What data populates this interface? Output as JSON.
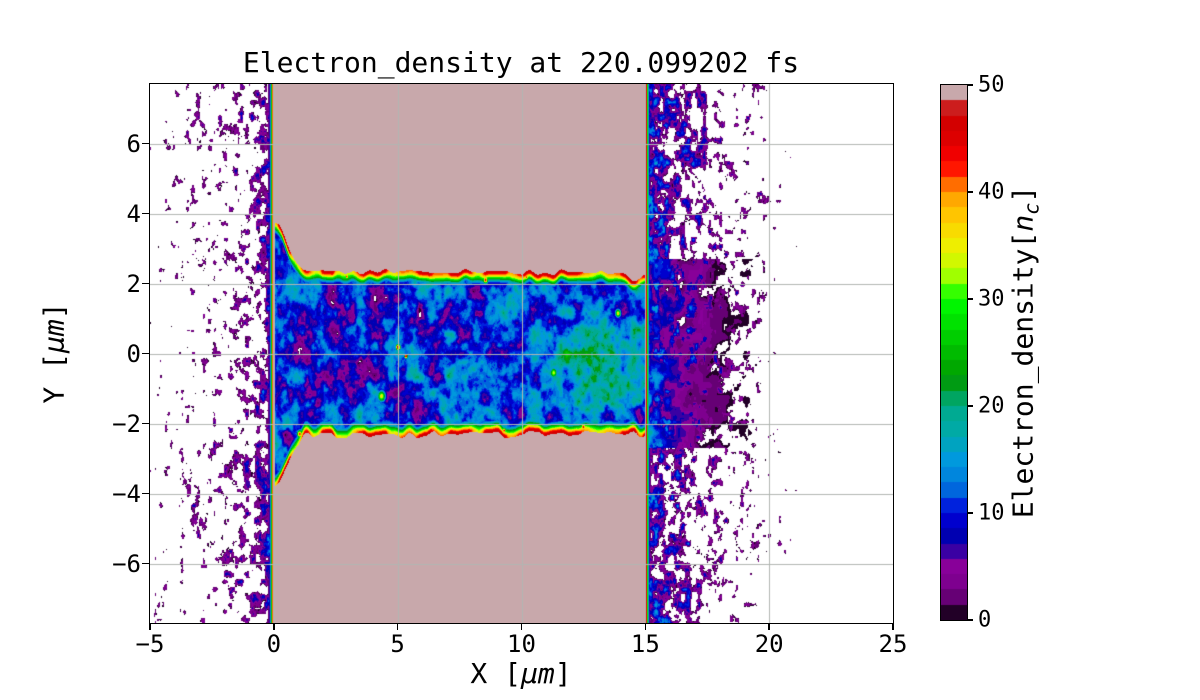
{
  "title": "Electron_density at 220.099202 fs",
  "labels": {
    "x": {
      "pre": "X [",
      "mu": "μm",
      "post": "]"
    },
    "y": {
      "pre": "Y [",
      "mu": "μm",
      "post": "]"
    },
    "cbar": {
      "pre": "Electron_density[",
      "sym": "n",
      "sub": "c",
      "post": "]"
    }
  },
  "axes": {
    "xlim": [
      -5,
      25
    ],
    "ylim": [
      -7.7,
      7.7
    ],
    "xticks": [
      {
        "v": -5,
        "label": "−5"
      },
      {
        "v": 0,
        "label": "0"
      },
      {
        "v": 5,
        "label": "5"
      },
      {
        "v": 10,
        "label": "10"
      },
      {
        "v": 15,
        "label": "15"
      },
      {
        "v": 20,
        "label": "20"
      },
      {
        "v": 25,
        "label": "25"
      }
    ],
    "yticks": [
      {
        "v": 6,
        "label": "6"
      },
      {
        "v": 4,
        "label": "4"
      },
      {
        "v": 2,
        "label": "2"
      },
      {
        "v": 0,
        "label": "0"
      },
      {
        "v": -2,
        "label": "−2"
      },
      {
        "v": -4,
        "label": "−4"
      },
      {
        "v": -6,
        "label": "−6"
      }
    ],
    "grid": {
      "color": "#b2b6b2",
      "xvalues": [
        0,
        5,
        10,
        15,
        20
      ],
      "yvalues": [
        -6,
        -4,
        -2,
        0,
        2,
        4,
        6
      ]
    }
  },
  "colorbar": {
    "vmin": 0,
    "vmax": 50,
    "ticks": [
      {
        "v": 0,
        "label": "0"
      },
      {
        "v": 10,
        "label": "10"
      },
      {
        "v": 20,
        "label": "20"
      },
      {
        "v": 30,
        "label": "30"
      },
      {
        "v": 40,
        "label": "40"
      },
      {
        "v": 50,
        "label": "50"
      }
    ]
  },
  "chart_data": {
    "type": "heatmap",
    "subtype": "filled-contour electron density map (PIC simulation output)",
    "title": "Electron_density at 220.099202 fs",
    "xlabel": "X [μm]",
    "ylabel": "Y [μm]",
    "colorbar_label": "Electron_density[n_c]",
    "xlim": [
      -5,
      25
    ],
    "ylim": [
      -7.7,
      7.7
    ],
    "value_range": [
      0,
      50
    ],
    "n_levels": 35,
    "below_min_blank_threshold": 1.0,
    "saturated_color": "#c8a8ab",
    "colormap_name": "nipy_spectral-like",
    "colormap_anchors": [
      [
        0.0,
        0.0,
        0.0,
        0.0
      ],
      [
        0.05,
        0.4667,
        0.0,
        0.5333
      ],
      [
        0.1,
        0.5333,
        0.0,
        0.6
      ],
      [
        0.15,
        0.0,
        0.0,
        0.6667
      ],
      [
        0.2,
        0.0,
        0.0,
        0.8667
      ],
      [
        0.25,
        0.0,
        0.4667,
        0.8667
      ],
      [
        0.3,
        0.0,
        0.6,
        0.8667
      ],
      [
        0.35,
        0.0,
        0.6667,
        0.6667
      ],
      [
        0.4,
        0.0,
        0.6667,
        0.5333
      ],
      [
        0.45,
        0.0,
        0.6,
        0.0
      ],
      [
        0.5,
        0.0,
        0.7333,
        0.0
      ],
      [
        0.55,
        0.0,
        0.8667,
        0.0
      ],
      [
        0.6,
        0.0,
        1.0,
        0.0
      ],
      [
        0.65,
        0.7333,
        1.0,
        0.0
      ],
      [
        0.7,
        0.9333,
        0.9333,
        0.0
      ],
      [
        0.75,
        1.0,
        0.8,
        0.0
      ],
      [
        0.8,
        1.0,
        0.6,
        0.0
      ],
      [
        0.85,
        1.0,
        0.0,
        0.0
      ],
      [
        0.9,
        0.8667,
        0.0,
        0.0
      ],
      [
        0.95,
        0.8,
        0.0,
        0.0
      ],
      [
        1.0,
        0.8,
        0.8,
        0.8
      ]
    ],
    "features": {
      "description": "Saturated (>=50 nc) target slabs spanning x=0..15 um above y~+2.3 and below y~-2.3; a turbulent under-dense channel |y|<2.3 bored through the target; red/orange rim contours along the slab walls; sparse purple electron speckle cloud for x<0; dense expanding purple cloud for x=15..23.",
      "gen": {
        "seed": 7,
        "slab_x": [
          0,
          15
        ],
        "channel_half_width": 2.32,
        "edge_flare_amp": 1.45,
        "edge_flare_sigma": 0.7,
        "edge_wiggle_amp": 0.11,
        "edge_wiggle_freq": 3.1,
        "edge_dip": {
          "x": 14.55,
          "amp": 0.26,
          "sigma": 0.4
        },
        "rim": {
          "cap": 47,
          "sigma": 0.2
        },
        "channel_noise": {
          "scale1": 1.7,
          "scale2": 4.4,
          "w1": 0.62,
          "w2": 0.38,
          "offset": 0.2,
          "gain": 34
        },
        "green_zone": {
          "x": 12.7,
          "y": -0.2,
          "sx": 5.1,
          "sy": 3.4,
          "amp": 9
        },
        "entrance_dim": {
          "x": 1.6,
          "sx": 1.8,
          "sy": 2.5,
          "amp": 3.5
        },
        "left_noise": {
          "scale": 4.6,
          "thr0": 0.5,
          "thr_slope": 0.055,
          "cluster_amp": 0.14,
          "hug_amp": 0.12,
          "hug_sigma": 0.3,
          "gain": 28
        },
        "right_noise": {
          "scale": 4.6,
          "thr0": 0.3,
          "thr_slope": 0.088,
          "cluster_amp": 0.13,
          "gain": 30
        },
        "exit_boost": {
          "ylim": 2.7,
          "scale": 2.2,
          "offset": 0.2,
          "gain": 34,
          "decay": 1.5
        },
        "edge_strip_sigma": 0.085,
        "hotspots": [
          {
            "x": 5.02,
            "y": 0.18,
            "r": 0.1,
            "a": 52
          },
          {
            "x": 5.34,
            "y": -0.08,
            "r": 0.07,
            "a": 50
          },
          {
            "x": 4.35,
            "y": -1.22,
            "r": 0.17,
            "a": 36
          },
          {
            "x": 8.55,
            "y": 2.1,
            "r": 0.11,
            "a": 45
          },
          {
            "x": 10.2,
            "y": 2.18,
            "r": 0.09,
            "a": 43
          },
          {
            "x": 12.5,
            "y": -2.1,
            "r": 0.1,
            "a": 46
          },
          {
            "x": 6.35,
            "y": -2.18,
            "r": 0.09,
            "a": 46
          },
          {
            "x": 2.95,
            "y": 2.2,
            "r": 0.09,
            "a": 43
          },
          {
            "x": 13.9,
            "y": 1.15,
            "r": 0.12,
            "a": 38
          },
          {
            "x": 11.3,
            "y": -0.55,
            "r": 0.15,
            "a": 34
          },
          {
            "x": 9.3,
            "y": -2.2,
            "r": 0.09,
            "a": 45
          },
          {
            "x": 1.05,
            "y": -2.3,
            "r": 0.12,
            "a": 44
          }
        ]
      }
    }
  }
}
